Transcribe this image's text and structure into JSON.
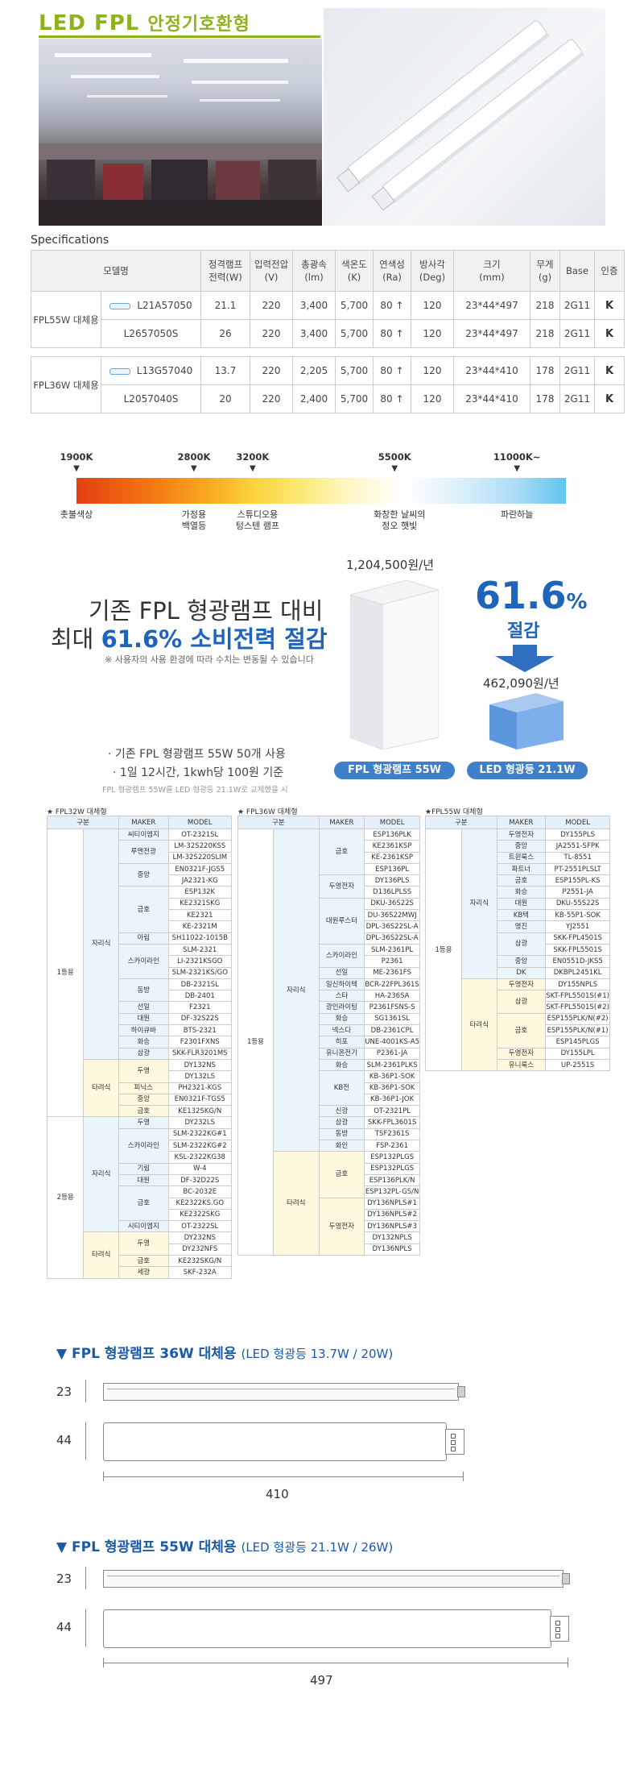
{
  "header": {
    "title_en": "LED FPL",
    "title_ko": "안정기호환형"
  },
  "specs": {
    "title": "Specifications",
    "headers": [
      "모델명",
      "정격램프\n전력(W)",
      "입력전압\n(V)",
      "총광속\n(lm)",
      "색온도\n(K)",
      "연색성\n(Ra)",
      "방사각\n(Deg)",
      "크기\n(mm)",
      "무게\n(g)",
      "Base",
      "인증"
    ],
    "cert_mark": "K",
    "groups": [
      {
        "name": "FPL55W 대체용",
        "rows": [
          {
            "model": "L21A57050",
            "watt": "21.1",
            "volt": "220",
            "lm": "3,400",
            "k": "5,700",
            "ra": "80 ↑",
            "deg": "120",
            "size": "23*44*497",
            "g": "218",
            "base": "2G11",
            "led": true
          },
          {
            "model": "L2657050S",
            "watt": "26",
            "volt": "220",
            "lm": "3,400",
            "k": "5,700",
            "ra": "80 ↑",
            "deg": "120",
            "size": "23*44*497",
            "g": "218",
            "base": "2G11",
            "led": false
          }
        ]
      },
      {
        "name": "FPL36W 대체용",
        "rows": [
          {
            "model": "L13G57040",
            "watt": "13.7",
            "volt": "220",
            "lm": "2,205",
            "k": "5,700",
            "ra": "80 ↑",
            "deg": "120",
            "size": "23*44*410",
            "g": "178",
            "base": "2G11",
            "led": true
          },
          {
            "model": "L2057040S",
            "watt": "20",
            "volt": "220",
            "lm": "2,400",
            "k": "5,700",
            "ra": "80 ↑",
            "deg": "120",
            "size": "23*44*410",
            "g": "178",
            "base": "2G11",
            "led": false
          }
        ]
      }
    ]
  },
  "color_temp": {
    "ticks": [
      {
        "label": "1900K",
        "pos": 0.0
      },
      {
        "label": "2800K",
        "pos": 0.24
      },
      {
        "label": "3200K",
        "pos": 0.36
      },
      {
        "label": "5500K",
        "pos": 0.65
      },
      {
        "label": "11000K~",
        "pos": 0.9
      }
    ],
    "descs": [
      {
        "text": "촛불색상",
        "pos": 0.0
      },
      {
        "text": "가정용\n백열등",
        "pos": 0.24
      },
      {
        "text": "스튜디오용\n텅스텐 램프",
        "pos": 0.37
      },
      {
        "text": "화창한 날씨의\n정오 햇빛",
        "pos": 0.66
      },
      {
        "text": "파란하늘",
        "pos": 0.9
      }
    ],
    "colors": {
      "warm": "#e23e14",
      "neutral": "#ffffff",
      "cool": "#61c4ef"
    }
  },
  "savings": {
    "headline1": "기존 FPL 형광램프 대비",
    "headline2_prefix": "최대 ",
    "headline2_highlight": "61.6% 소비전력 절감",
    "note": "※ 사용자의 사용 환경에 따라 수치는 변동될 수 있습니다",
    "bullet1": "· 기존 FPL 형광램프 55W 50개 사용",
    "bullet2": "· 1일 12시간, 1kwh당 100원 기준",
    "bullet3": "FPL 형광램프 55W를 LED 형광등 21.1W로 교체했을 시",
    "fpl_price": "1,204,500원/년",
    "fpl_label": "FPL 형광램프 55W",
    "percent_num": "61.6",
    "percent_sign": "%",
    "save_word": "절감",
    "led_price": "462,090원/년",
    "led_label": "LED 형광등 21.1W",
    "accent": "#1e64b8"
  },
  "compat": {
    "header": [
      "구분",
      "MAKER",
      "MODEL"
    ],
    "fpl32": {
      "caption": "★ FPL32W 대체형",
      "rows": [
        [
          "1등용",
          "자리식",
          "씨티이엠지",
          "OT-2321SL"
        ],
        [
          "",
          "",
          "루멘전광",
          "LM-32S220KSS"
        ],
        [
          "",
          "",
          "",
          "LM-32S220SLIM"
        ],
        [
          "",
          "",
          "중앙",
          "EN0321F-JGS5"
        ],
        [
          "",
          "",
          "",
          "JA2321-KG"
        ],
        [
          "",
          "",
          "금호",
          "ESP132K"
        ],
        [
          "",
          "",
          "",
          "KE2321SKG"
        ],
        [
          "",
          "",
          "",
          "KE2321"
        ],
        [
          "",
          "",
          "",
          "KE-2321M"
        ],
        [
          "",
          "",
          "아림",
          "SH11022-1015B"
        ],
        [
          "",
          "",
          "스카이라인",
          "SLM-2321"
        ],
        [
          "",
          "",
          "",
          "LI-2321KSGO"
        ],
        [
          "",
          "",
          "",
          "SLM-2321KS/GO"
        ],
        [
          "",
          "",
          "동방",
          "DB-2321SL"
        ],
        [
          "",
          "",
          "",
          "DB-2401"
        ],
        [
          "",
          "",
          "선일",
          "F2321"
        ],
        [
          "",
          "",
          "대원",
          "DF-32S22S"
        ],
        [
          "",
          "",
          "하이큐바",
          "BTS-2321"
        ],
        [
          "",
          "",
          "화승",
          "F2301FXNS"
        ],
        [
          "",
          "",
          "삼광",
          "SKK-FLR3201MS"
        ],
        [
          "",
          "타려식",
          "두영",
          "DY132NS"
        ],
        [
          "",
          "",
          "",
          "DY132LS"
        ],
        [
          "",
          "",
          "피닉스",
          "PH2321-KGS"
        ],
        [
          "",
          "",
          "중앙",
          "EN0321F-TGS5"
        ],
        [
          "",
          "",
          "금호",
          "KE132SKG/N"
        ],
        [
          "2등용",
          "자리식",
          "두영",
          "DY232LS"
        ],
        [
          "",
          "",
          "스카이라인",
          "SLM-2322KG#1"
        ],
        [
          "",
          "",
          "",
          "SLM-2322KG#2"
        ],
        [
          "",
          "",
          "",
          "KSL-2322KG38"
        ],
        [
          "",
          "",
          "기림",
          "W-4"
        ],
        [
          "",
          "",
          "대원",
          "DF-32D22S"
        ],
        [
          "",
          "",
          "금호",
          "BC-2032E"
        ],
        [
          "",
          "",
          "",
          "KE2322KS.GO"
        ],
        [
          "",
          "",
          "",
          "KE2322SKG"
        ],
        [
          "",
          "",
          "시티이엠지",
          "OT-2322SL"
        ],
        [
          "",
          "타려식",
          "두영",
          "DY232NS"
        ],
        [
          "",
          "",
          "",
          "DY232NFS"
        ],
        [
          "",
          "",
          "금호",
          "KE232SKG/N"
        ],
        [
          "",
          "",
          "세광",
          "SKF-232A"
        ]
      ]
    },
    "fpl36": {
      "caption": "★ FPL36W 대체형",
      "rows": [
        [
          "1등용",
          "자리식",
          "금호",
          "ESP136PLK"
        ],
        [
          "",
          "",
          "",
          "KE2361KSP"
        ],
        [
          "",
          "",
          "",
          "KE-2361KSP"
        ],
        [
          "",
          "",
          "",
          "ESP136PL"
        ],
        [
          "",
          "",
          "두영전자",
          "DY136PLS"
        ],
        [
          "",
          "",
          "",
          "D136LPLSS"
        ],
        [
          "",
          "",
          "대원루스터",
          "DKU-36S22S"
        ],
        [
          "",
          "",
          "",
          "DU-36S22MWJ"
        ],
        [
          "",
          "",
          "",
          "DPL-36S22SL-A"
        ],
        [
          "",
          "",
          "",
          "DPL-36S22SL-A"
        ],
        [
          "",
          "",
          "스카이라인",
          "SLM-2361PL"
        ],
        [
          "",
          "",
          "",
          "P2361"
        ],
        [
          "",
          "",
          "선일",
          "ME-2361FS"
        ],
        [
          "",
          "",
          "일신하이텍",
          "BCR-22FPL361S"
        ],
        [
          "",
          "",
          "스타",
          "HA-236SA"
        ],
        [
          "",
          "",
          "광인라이팅",
          "P2361FSNS-S"
        ],
        [
          "",
          "",
          "화승",
          "SG1361SL"
        ],
        [
          "",
          "",
          "넥스다",
          "DB-2361CPL"
        ],
        [
          "",
          "",
          "히포",
          "UNE-4001KS-A5"
        ],
        [
          "",
          "",
          "유니온전기",
          "P2361-JA"
        ],
        [
          "",
          "",
          "화승",
          "SLM-2361PLKS"
        ],
        [
          "",
          "",
          "KB전",
          "KB-36P1-SOK"
        ],
        [
          "",
          "",
          "",
          "KB-36P1-SOK"
        ],
        [
          "",
          "",
          "",
          "KB-36P1-JOK"
        ],
        [
          "",
          "",
          "신광",
          "OT-2321PL"
        ],
        [
          "",
          "",
          "삼광",
          "SKK-FPL3601S"
        ],
        [
          "",
          "",
          "동방",
          "TSF2361S"
        ],
        [
          "",
          "",
          "화인",
          "FSP-2361"
        ],
        [
          "",
          "타려식",
          "금호",
          "ESP132PLGS"
        ],
        [
          "",
          "",
          "",
          "ESP132PLGS"
        ],
        [
          "",
          "",
          "",
          "ESP136PLK/N"
        ],
        [
          "",
          "",
          "",
          "ESP132PL-GS/N"
        ],
        [
          "",
          "",
          "두영전자",
          "DY136NPLS#1"
        ],
        [
          "",
          "",
          "",
          "DY136NPLS#2"
        ],
        [
          "",
          "",
          "",
          "DY136NPLS#3"
        ],
        [
          "",
          "",
          "",
          "DY132NPLS"
        ],
        [
          "",
          "",
          "",
          "DY136NPLS"
        ]
      ]
    },
    "fpl55": {
      "caption": "★FPL55W 대체형",
      "rows": [
        [
          "1등용",
          "자리식",
          "두영전자",
          "DY155PLS"
        ],
        [
          "",
          "",
          "중앙",
          "JA2551-SFPK"
        ],
        [
          "",
          "",
          "트윈룩스",
          "TL-8551"
        ],
        [
          "",
          "",
          "파트너",
          "PT-2551PLSLT"
        ],
        [
          "",
          "",
          "금호",
          "ESP155PL-KS"
        ],
        [
          "",
          "",
          "화승",
          "P2551-JA"
        ],
        [
          "",
          "",
          "대원",
          "DKU-55S22S"
        ],
        [
          "",
          "",
          "KB텍",
          "KB-55P1-SOK"
        ],
        [
          "",
          "",
          "영진",
          "YJ2551"
        ],
        [
          "",
          "",
          "삼광",
          "SKK-FPL4501S"
        ],
        [
          "",
          "",
          "",
          "SKK-FPL5501S"
        ],
        [
          "",
          "",
          "중앙",
          "EN0551D-JKS5"
        ],
        [
          "",
          "",
          "DK",
          "DKBPL2451KL"
        ],
        [
          "",
          "타려식",
          "두영전자",
          "DY155NPLS"
        ],
        [
          "",
          "",
          "삼광",
          "SKT-FPL5501S(#1)"
        ],
        [
          "",
          "",
          "",
          "SKT-FPL5501S(#2)"
        ],
        [
          "",
          "",
          "금호",
          "ESP155PLK/N(#2)"
        ],
        [
          "",
          "",
          "",
          "ESP155PLK/N(#1)"
        ],
        [
          "",
          "",
          "",
          "ESP145PLGS"
        ],
        [
          "",
          "",
          "두영전자",
          "DY155LPL"
        ],
        [
          "",
          "",
          "유니룩스",
          "UP-2551S"
        ]
      ]
    }
  },
  "drawings": {
    "d36": {
      "title": "▼ FPL 형광램프 36W 대체용",
      "sub": "(LED 형광등 13.7W / 20W)",
      "h_thin": "23",
      "h_fat": "44",
      "length": "410"
    },
    "d55": {
      "title": "▼ FPL 형광램프 55W 대체용",
      "sub": "(LED 형광등 21.1W / 26W)",
      "h_thin": "23",
      "h_fat": "44",
      "length": "497"
    }
  }
}
